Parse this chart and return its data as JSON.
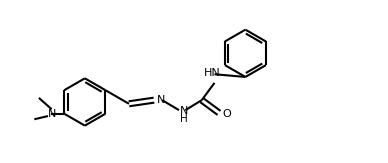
{
  "bg_color": "#ffffff",
  "line_color": "#000000",
  "text_color": "#000000",
  "bond_lw": 1.5,
  "figsize": [
    3.88,
    1.63
  ],
  "dpi": 100,
  "ring_r": 0.52,
  "xlim": [
    0.0,
    8.5
  ],
  "ylim": [
    0.0,
    3.5
  ]
}
